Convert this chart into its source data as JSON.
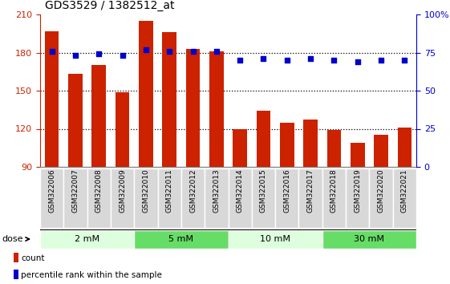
{
  "title": "GDS3529 / 1382512_at",
  "samples": [
    "GSM322006",
    "GSM322007",
    "GSM322008",
    "GSM322009",
    "GSM322010",
    "GSM322011",
    "GSM322012",
    "GSM322013",
    "GSM322014",
    "GSM322015",
    "GSM322016",
    "GSM322017",
    "GSM322018",
    "GSM322019",
    "GSM322020",
    "GSM322021"
  ],
  "bar_values": [
    197,
    163,
    170,
    149,
    205,
    196,
    183,
    181,
    120,
    134,
    125,
    127,
    119,
    109,
    115,
    121
  ],
  "percentile_values": [
    76,
    73,
    74,
    73,
    77,
    76,
    76,
    76,
    70,
    71,
    70,
    71,
    70,
    69,
    70,
    70
  ],
  "bar_color": "#cc2200",
  "percentile_color": "#0000cc",
  "ylim_left": [
    90,
    210
  ],
  "ylim_right": [
    0,
    100
  ],
  "yticks_left": [
    90,
    120,
    150,
    180,
    210
  ],
  "yticks_right": [
    0,
    25,
    50,
    75,
    100
  ],
  "grid_values": [
    180,
    150,
    120
  ],
  "dose_groups": [
    {
      "label": "2 mM",
      "start": 0,
      "end": 4,
      "color": "#ddffdd"
    },
    {
      "label": "5 mM",
      "start": 4,
      "end": 8,
      "color": "#66dd66"
    },
    {
      "label": "10 mM",
      "start": 8,
      "end": 12,
      "color": "#ddffdd"
    },
    {
      "label": "30 mM",
      "start": 12,
      "end": 16,
      "color": "#66dd66"
    }
  ],
  "dose_label": "dose",
  "legend_count_label": "count",
  "legend_percentile_label": "percentile rank within the sample",
  "bar_width": 0.6,
  "plot_bg": "#ffffff",
  "xaxis_bg": "#c8c8c8",
  "border_color": "#888888"
}
